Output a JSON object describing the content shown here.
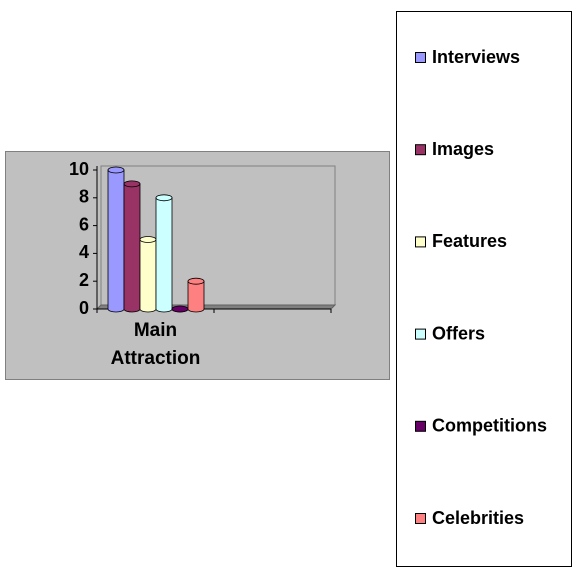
{
  "chart_data": {
    "type": "bar",
    "categories": [
      "Main Attraction",
      null
    ],
    "series": [
      {
        "name": "Interviews",
        "color": "#9999ff",
        "values": [
          10,
          null
        ]
      },
      {
        "name": "Images",
        "color": "#993366",
        "values": [
          9,
          null
        ]
      },
      {
        "name": "Features",
        "color": "#ffffcc",
        "values": [
          5,
          null
        ]
      },
      {
        "name": "Offers",
        "color": "#ccffff",
        "values": [
          8,
          null
        ]
      },
      {
        "name": "Competitions",
        "color": "#660066",
        "values": [
          0,
          null
        ]
      },
      {
        "name": "Celebrities",
        "color": "#ff8080",
        "values": [
          2,
          null
        ]
      }
    ],
    "ylim": [
      0,
      10
    ],
    "yticks": [
      0,
      2,
      4,
      6,
      8,
      10
    ]
  }
}
